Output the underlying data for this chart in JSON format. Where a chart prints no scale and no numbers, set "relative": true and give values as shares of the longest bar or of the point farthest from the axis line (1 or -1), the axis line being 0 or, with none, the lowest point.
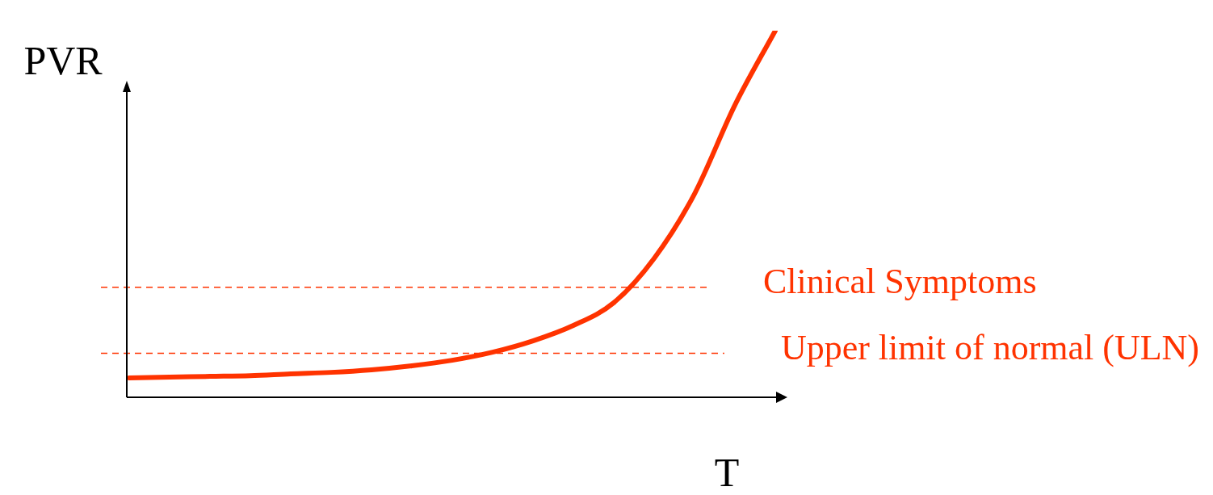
{
  "chart_data": {
    "type": "line",
    "relative": true,
    "xlabel": "T",
    "ylabel": "PVR",
    "marker": "none",
    "categories": [
      null,
      null,
      null,
      null,
      null,
      null,
      null,
      null,
      null,
      null,
      null,
      null,
      null,
      null,
      null,
      null,
      null
    ],
    "series": [
      {
        "color": "#ff3300",
        "values": [
          0.053,
          0.055,
          0.057,
          0.059,
          0.064,
          0.068,
          0.075,
          0.086,
          0.101,
          0.123,
          0.154,
          0.196,
          0.258,
          0.379,
          0.555,
          0.797,
          1
        ]
      }
    ],
    "ref_lines": [
      {
        "axis": "y",
        "value": 0.3,
        "label": "Clinical Symptoms",
        "color": "#ff3300",
        "line_style": "dashed"
      },
      {
        "axis": "y",
        "value": 0.12,
        "label": "Upper limit of normal (ULN)",
        "color": "#ff3300",
        "line_style": "dashed"
      }
    ]
  }
}
